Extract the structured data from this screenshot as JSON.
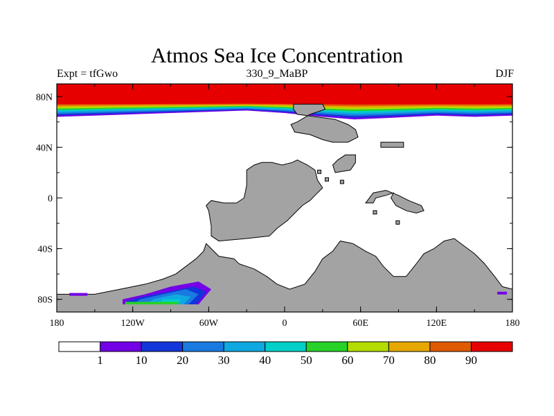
{
  "chart_data": {
    "type": "heatmap",
    "title": "Atmos Sea Ice Concentration",
    "subtitle_left": "Expt = tfGwo",
    "subtitle_center": "330_9_MaBP",
    "subtitle_right": "DJF",
    "projection": "cylindrical-equidistant",
    "xlim": [
      -180,
      180
    ],
    "ylim": [
      -90,
      90
    ],
    "x_ticks": [
      {
        "value": -180,
        "label": "180"
      },
      {
        "value": -120,
        "label": "120W"
      },
      {
        "value": -60,
        "label": "60W"
      },
      {
        "value": 0,
        "label": "0"
      },
      {
        "value": 60,
        "label": "60E"
      },
      {
        "value": 120,
        "label": "120E"
      },
      {
        "value": 180,
        "label": "180"
      }
    ],
    "y_ticks": [
      {
        "value": 80,
        "label": "80N"
      },
      {
        "value": 40,
        "label": "40N"
      },
      {
        "value": 0,
        "label": "0"
      },
      {
        "value": -40,
        "label": "40S"
      },
      {
        "value": -80,
        "label": "80S"
      }
    ],
    "land_color": "#a3a3a3",
    "ocean_color": "#ffffff",
    "colorbar": {
      "levels": [
        1,
        10,
        20,
        30,
        40,
        50,
        60,
        70,
        80,
        90
      ],
      "colors": [
        "#ffffff",
        "#7300e6",
        "#1236d9",
        "#1a7ae0",
        "#10a8e0",
        "#00d0c8",
        "#28d228",
        "#b4dc00",
        "#e6a800",
        "#e05a00",
        "#e60000"
      ]
    },
    "arctic_ice": {
      "description_levels": "concentration decreases from 90 at the pole to 1 at the edge",
      "edge_profile": [
        {
          "lon": -180,
          "lat": 64
        },
        {
          "lon": -150,
          "lat": 65
        },
        {
          "lon": -120,
          "lat": 66
        },
        {
          "lon": -90,
          "lat": 67
        },
        {
          "lon": -60,
          "lat": 68
        },
        {
          "lon": -30,
          "lat": 69
        },
        {
          "lon": 0,
          "lat": 67
        },
        {
          "lon": 30,
          "lat": 64
        },
        {
          "lon": 55,
          "lat": 62
        },
        {
          "lon": 80,
          "lat": 63
        },
        {
          "lon": 120,
          "lat": 65
        },
        {
          "lon": 150,
          "lat": 64
        },
        {
          "lon": 180,
          "lat": 65
        }
      ],
      "solid_limit_lat": 75
    },
    "antarctic_ice_patch": {
      "lon_range": [
        -125,
        -60
      ],
      "lat_range": [
        -84,
        -68
      ],
      "max_value": 60
    }
  }
}
